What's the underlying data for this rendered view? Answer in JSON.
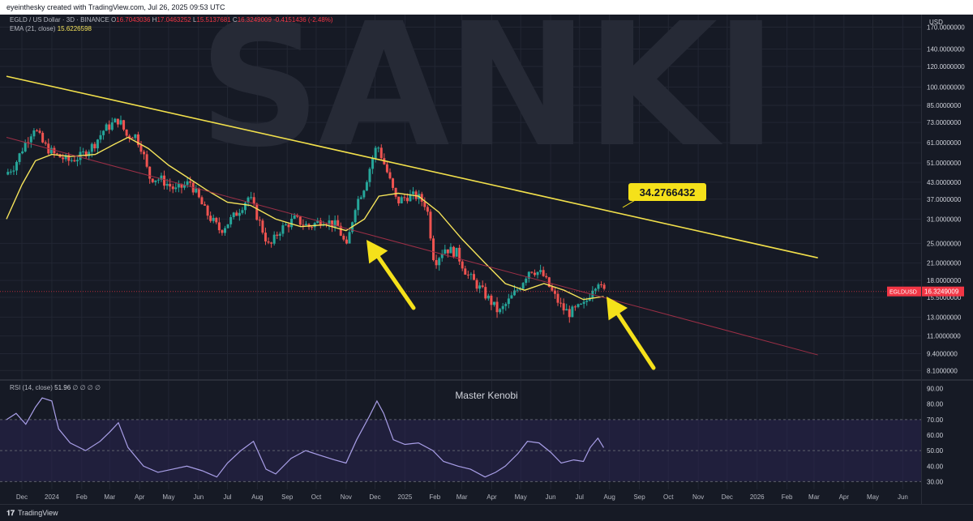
{
  "header": {
    "caption": "eyeinthesky created with TradingView.com, Jul 26, 2025 09:53 UTC"
  },
  "legend": {
    "symbol": "EGLD / US Dollar · 3D · BINANCE",
    "open_label": "O",
    "open": "16.7043036",
    "high_label": "H",
    "high": "17.0463252",
    "low_label": "L",
    "low": "15.5137681",
    "close_label": "C",
    "close": "16.3249009",
    "change": "-0.4151436 (-2.48%)",
    "ema_label": "EMA (21, close)",
    "ema_value": "15.6226598",
    "rsi_label": "RSI (14, close)",
    "rsi_value": "51.96",
    "rsi_rest": "∅ ∅ ∅ ∅"
  },
  "watermark": "SANKI",
  "annotation_label": "34.2766432",
  "rsi_text": "Master Kenobi",
  "price_tag": {
    "symbol": "EGLDUSD",
    "value": "16.3249009",
    "current": 16.3249
  },
  "currency": "USD",
  "footer": {
    "brand": "TradingView"
  },
  "colors": {
    "background": "#161a25",
    "grid": "#222633",
    "up": "#26a69a",
    "down": "#ef5350",
    "ema": "#f5e35a",
    "trendline": "#f2e04b",
    "support": "#9c2f46",
    "rsi": "#a99fe8",
    "arrow": "#f5e11a"
  },
  "chart_data": [
    {
      "type": "candlestick",
      "title": "EGLD / US Dollar · 3D · BINANCE",
      "y_scale": "log",
      "y_ticks": [
        170,
        140,
        120,
        100,
        85,
        73,
        61,
        51,
        43,
        37,
        31,
        25,
        21,
        18,
        15.5,
        13,
        11,
        9.4,
        8.1
      ],
      "y_tick_labels": [
        "170.0000000",
        "140.0000000",
        "120.0000000",
        "100.0000000",
        "85.0000000",
        "73.0000000",
        "61.0000000",
        "51.0000000",
        "43.0000000",
        "37.0000000",
        "31.0000000",
        "25.0000000",
        "21.0000000",
        "18.0000000",
        "15.5000000",
        "13.0000000",
        "11.0000000",
        "9.4000000",
        "8.1000000"
      ],
      "x_ticks": [
        "Dec",
        "2024",
        "Feb",
        "Mar",
        "Apr",
        "May",
        "Jun",
        "Jul",
        "Aug",
        "Sep",
        "Oct",
        "Nov",
        "Dec",
        "2025",
        "Feb",
        "Mar",
        "Apr",
        "May",
        "Jun",
        "Jul",
        "Aug",
        "Sep",
        "Oct",
        "Nov",
        "Dec",
        "2026",
        "Feb",
        "Mar",
        "Apr",
        "May",
        "Jun"
      ],
      "x_range": [
        "2023-11-15",
        "2026-06-20"
      ],
      "series": [
        {
          "kind": "price",
          "points": [
            [
              "2023-11-15",
              46
            ],
            [
              "2023-11-25",
              50
            ],
            [
              "2023-12-05",
              60
            ],
            [
              "2023-12-15",
              70
            ],
            [
              "2023-12-25",
              60
            ],
            [
              "2024-01-05",
              55
            ],
            [
              "2024-01-20",
              52
            ],
            [
              "2024-02-01",
              54
            ],
            [
              "2024-02-15",
              60
            ],
            [
              "2024-02-25",
              68
            ],
            [
              "2024-03-05",
              72
            ],
            [
              "2024-03-12",
              75
            ],
            [
              "2024-03-20",
              65
            ],
            [
              "2024-03-28",
              66
            ],
            [
              "2024-04-05",
              58
            ],
            [
              "2024-04-12",
              45
            ],
            [
              "2024-04-25",
              44
            ],
            [
              "2024-05-10",
              40
            ],
            [
              "2024-05-25",
              43
            ],
            [
              "2024-06-10",
              33
            ],
            [
              "2024-06-25",
              28
            ],
            [
              "2024-07-10",
              32
            ],
            [
              "2024-07-25",
              38
            ],
            [
              "2024-08-05",
              30
            ],
            [
              "2024-08-15",
              24
            ],
            [
              "2024-08-25",
              28
            ],
            [
              "2024-09-10",
              31
            ],
            [
              "2024-09-25",
              29
            ],
            [
              "2024-10-10",
              31
            ],
            [
              "2024-10-25",
              29
            ],
            [
              "2024-11-03",
              24
            ],
            [
              "2024-11-12",
              35
            ],
            [
              "2024-11-22",
              42
            ],
            [
              "2024-12-01",
              55
            ],
            [
              "2024-12-05",
              60
            ],
            [
              "2024-12-15",
              47
            ],
            [
              "2024-12-25",
              36
            ],
            [
              "2025-01-05",
              38
            ],
            [
              "2025-01-15",
              38
            ],
            [
              "2025-01-25",
              35
            ],
            [
              "2025-02-02",
              21
            ],
            [
              "2025-02-12",
              24
            ],
            [
              "2025-02-25",
              23
            ],
            [
              "2025-03-08",
              19
            ],
            [
              "2025-03-20",
              17
            ],
            [
              "2025-04-01",
              15
            ],
            [
              "2025-04-10",
              13.5
            ],
            [
              "2025-04-20",
              15
            ],
            [
              "2025-05-01",
              17
            ],
            [
              "2025-05-12",
              20
            ],
            [
              "2025-05-25",
              19
            ],
            [
              "2025-06-05",
              16
            ],
            [
              "2025-06-15",
              14
            ],
            [
              "2025-06-22",
              13.5
            ],
            [
              "2025-06-30",
              14
            ],
            [
              "2025-07-08",
              14.5
            ],
            [
              "2025-07-16",
              17
            ],
            [
              "2025-07-22",
              18
            ],
            [
              "2025-07-26",
              16.3249
            ]
          ]
        },
        {
          "kind": "ema",
          "points": [
            [
              "2023-11-15",
              31
            ],
            [
              "2023-12-01",
              42
            ],
            [
              "2023-12-15",
              52
            ],
            [
              "2024-01-01",
              55
            ],
            [
              "2024-01-20",
              54
            ],
            [
              "2024-02-15",
              55
            ],
            [
              "2024-03-05",
              60
            ],
            [
              "2024-03-20",
              64
            ],
            [
              "2024-04-10",
              58
            ],
            [
              "2024-05-01",
              50
            ],
            [
              "2024-05-20",
              45
            ],
            [
              "2024-06-10",
              40
            ],
            [
              "2024-07-01",
              36
            ],
            [
              "2024-07-25",
              35
            ],
            [
              "2024-08-20",
              31
            ],
            [
              "2024-09-15",
              29
            ],
            [
              "2024-10-10",
              29.5
            ],
            [
              "2024-11-01",
              28
            ],
            [
              "2024-11-20",
              31
            ],
            [
              "2024-12-05",
              38
            ],
            [
              "2024-12-25",
              39
            ],
            [
              "2025-01-15",
              38
            ],
            [
              "2025-02-05",
              33
            ],
            [
              "2025-03-01",
              26
            ],
            [
              "2025-03-25",
              21
            ],
            [
              "2025-04-15",
              17.5
            ],
            [
              "2025-05-05",
              16.5
            ],
            [
              "2025-05-25",
              17.5
            ],
            [
              "2025-06-15",
              16.5
            ],
            [
              "2025-07-05",
              15.2
            ],
            [
              "2025-07-26",
              15.62
            ]
          ]
        },
        {
          "kind": "trendline",
          "points": [
            [
              "2023-11-15",
              110
            ],
            [
              "2026-03-05",
              22
            ]
          ]
        },
        {
          "kind": "support-line",
          "points": [
            [
              "2023-11-15",
              64
            ],
            [
              "2026-03-05",
              9.3
            ]
          ]
        }
      ]
    },
    {
      "type": "line",
      "title": "RSI (14, close)",
      "y_ticks": [
        90,
        80,
        70,
        60,
        50,
        40,
        30
      ],
      "y_tick_labels": [
        "90.00",
        "80.00",
        "70.00",
        "60.00",
        "50.00",
        "40.00",
        "30.00"
      ],
      "band": [
        30,
        70
      ],
      "series": [
        {
          "points": [
            [
              "2023-11-15",
              70
            ],
            [
              "2023-11-25",
              74
            ],
            [
              "2023-12-05",
              67
            ],
            [
              "2023-12-15",
              78
            ],
            [
              "2023-12-22",
              84
            ],
            [
              "2024-01-01",
              82
            ],
            [
              "2024-01-08",
              64
            ],
            [
              "2024-01-20",
              55
            ],
            [
              "2024-02-05",
              50
            ],
            [
              "2024-02-20",
              56
            ],
            [
              "2024-03-01",
              62
            ],
            [
              "2024-03-10",
              68
            ],
            [
              "2024-03-20",
              52
            ],
            [
              "2024-04-05",
              40
            ],
            [
              "2024-04-20",
              36
            ],
            [
              "2024-05-05",
              38
            ],
            [
              "2024-05-20",
              40
            ],
            [
              "2024-06-05",
              37
            ],
            [
              "2024-06-20",
              33
            ],
            [
              "2024-07-01",
              42
            ],
            [
              "2024-07-15",
              50
            ],
            [
              "2024-07-28",
              56
            ],
            [
              "2024-08-10",
              38
            ],
            [
              "2024-08-20",
              35
            ],
            [
              "2024-09-05",
              45
            ],
            [
              "2024-09-20",
              50
            ],
            [
              "2024-10-05",
              47
            ],
            [
              "2024-10-20",
              44
            ],
            [
              "2024-11-01",
              42
            ],
            [
              "2024-11-12",
              57
            ],
            [
              "2024-11-25",
              72
            ],
            [
              "2024-12-03",
              82
            ],
            [
              "2024-12-10",
              74
            ],
            [
              "2024-12-20",
              57
            ],
            [
              "2025-01-01",
              54
            ],
            [
              "2025-01-15",
              55
            ],
            [
              "2025-01-30",
              50
            ],
            [
              "2025-02-10",
              43
            ],
            [
              "2025-02-25",
              40
            ],
            [
              "2025-03-10",
              38
            ],
            [
              "2025-03-25",
              33
            ],
            [
              "2025-04-05",
              36
            ],
            [
              "2025-04-15",
              40
            ],
            [
              "2025-04-28",
              48
            ],
            [
              "2025-05-08",
              56
            ],
            [
              "2025-05-20",
              55
            ],
            [
              "2025-06-01",
              49
            ],
            [
              "2025-06-12",
              42
            ],
            [
              "2025-06-25",
              44
            ],
            [
              "2025-07-05",
              43
            ],
            [
              "2025-07-12",
              52
            ],
            [
              "2025-07-20",
              58
            ],
            [
              "2025-07-26",
              51.96
            ]
          ]
        }
      ]
    }
  ]
}
